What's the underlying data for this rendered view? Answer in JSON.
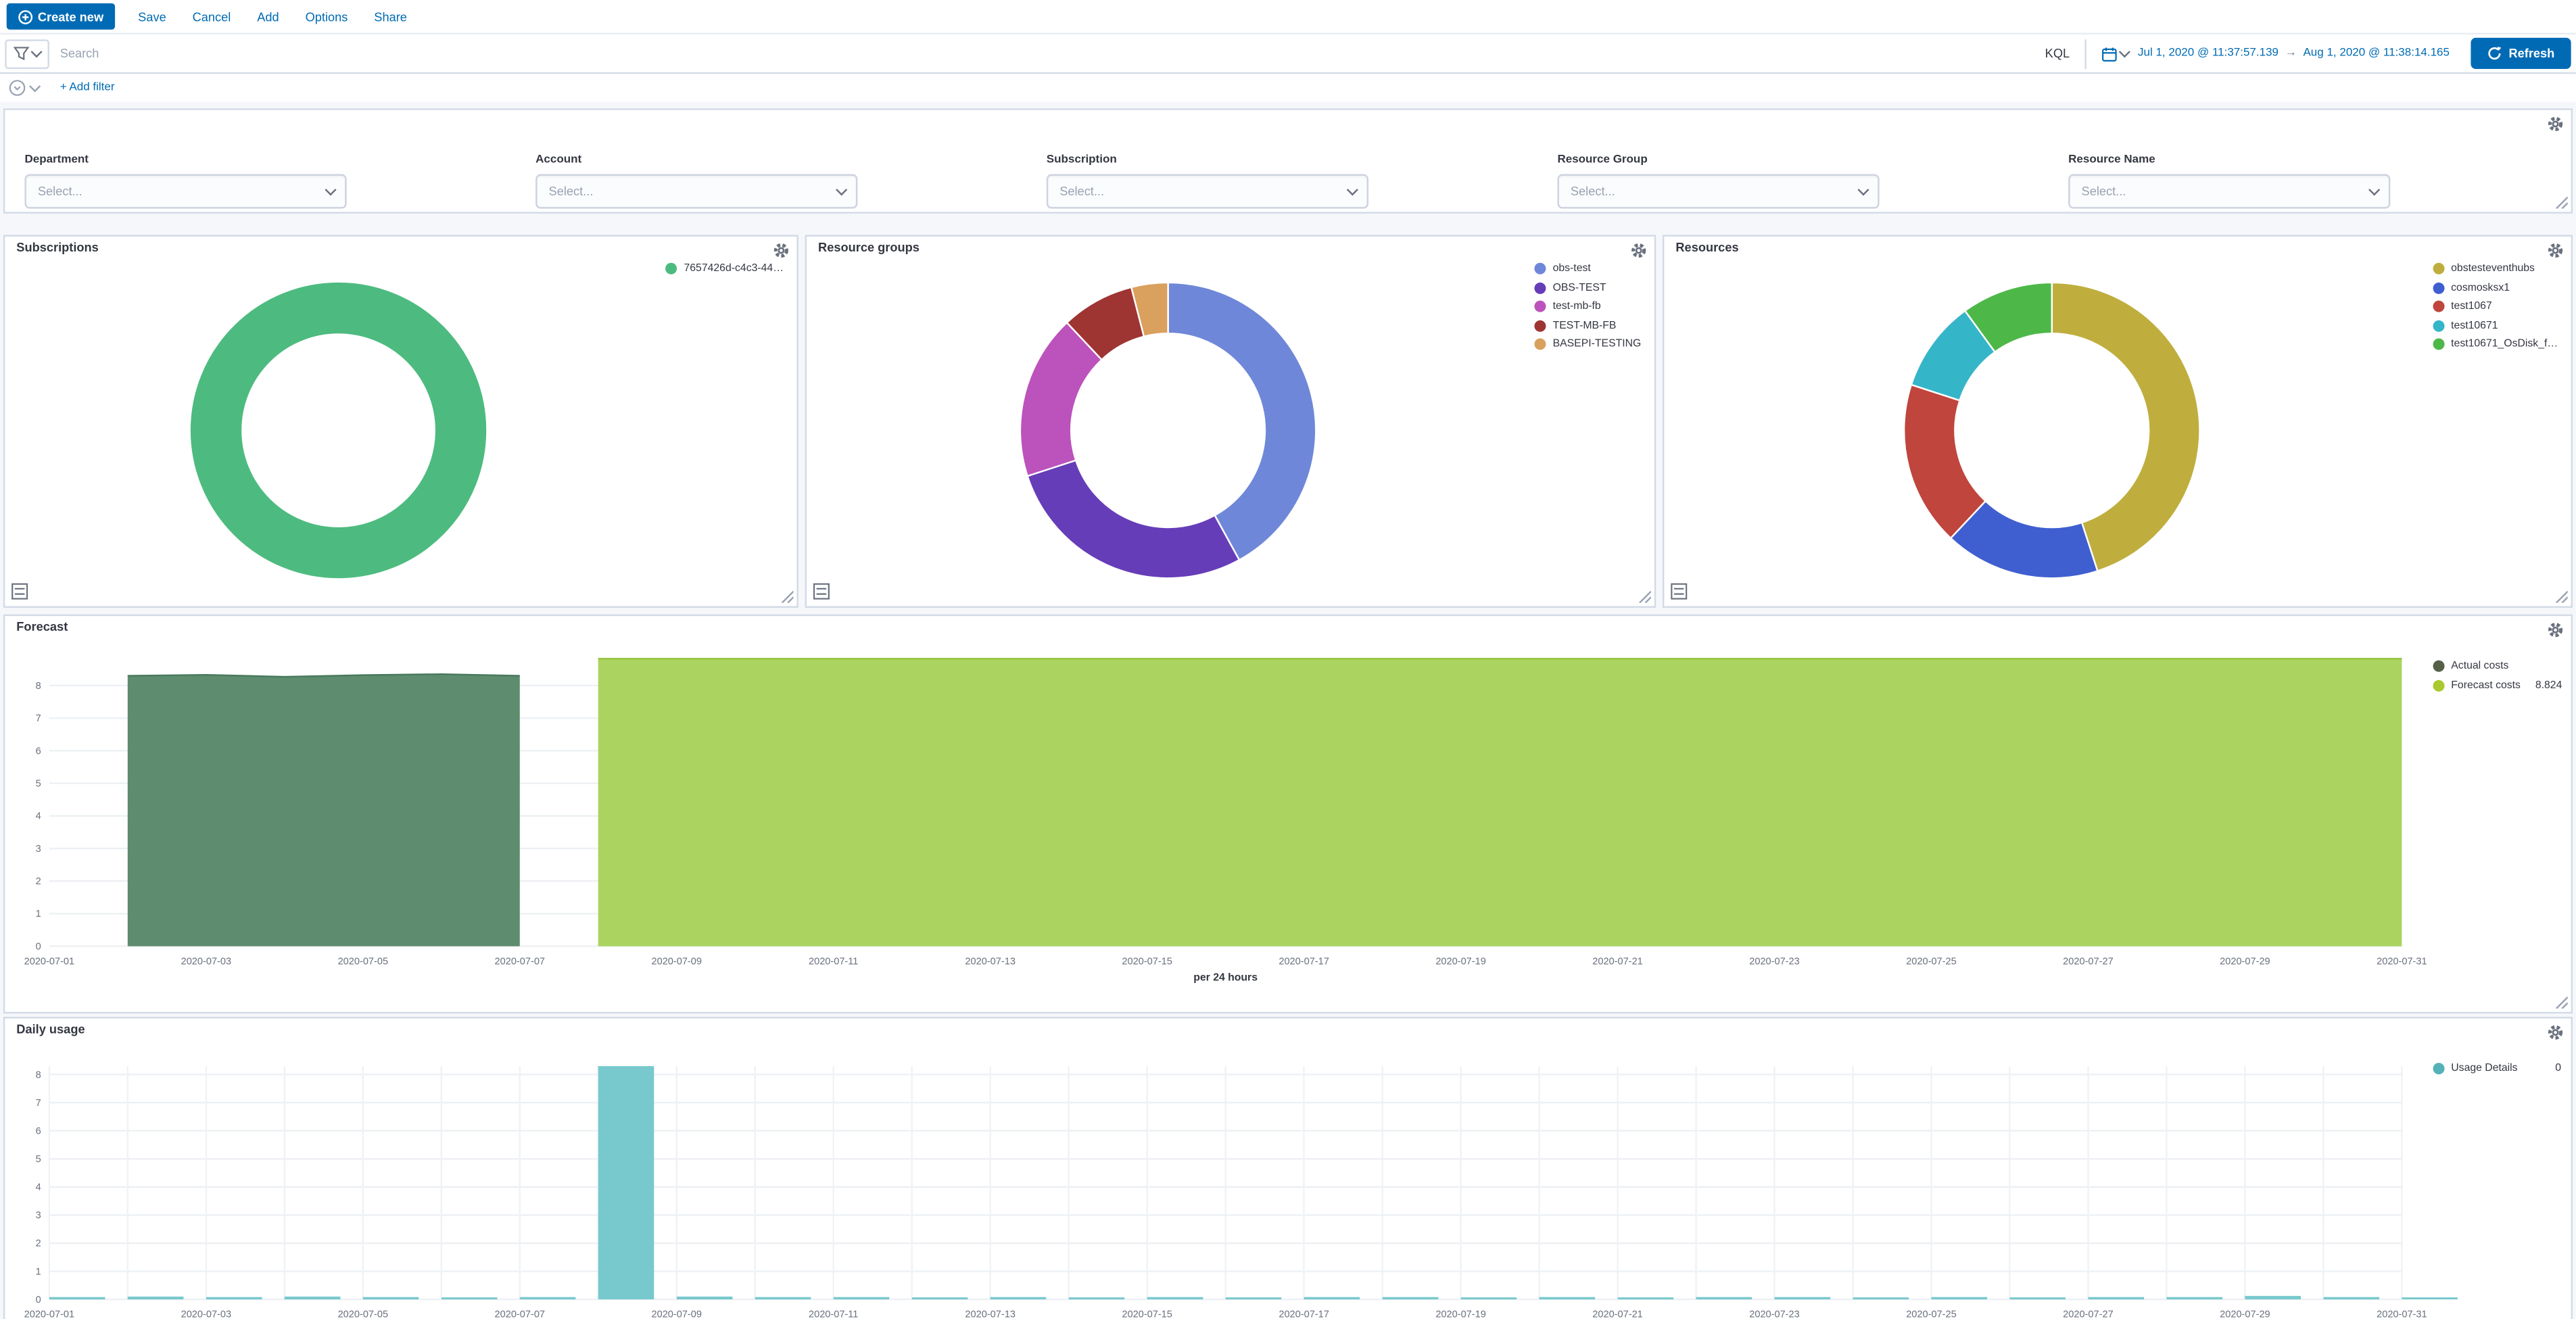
{
  "toolbar": {
    "create_new_label": "Create new",
    "items": [
      {
        "label": "Save"
      },
      {
        "label": "Cancel"
      },
      {
        "label": "Add"
      },
      {
        "label": "Options"
      },
      {
        "label": "Share"
      }
    ]
  },
  "search_bar": {
    "placeholder": "Search",
    "kql_label": "KQL",
    "date_from": "Jul 1, 2020 @ 11:37:57.139",
    "date_arrow": "→",
    "date_to": "Aug 1, 2020 @ 11:38:14.165",
    "refresh_label": "Refresh"
  },
  "filter_row": {
    "add_filter_label": "+ Add filter"
  },
  "filter_controls": {
    "fields": [
      {
        "label": "Department",
        "placeholder": "Select..."
      },
      {
        "label": "Account",
        "placeholder": "Select..."
      },
      {
        "label": "Subscription",
        "placeholder": "Select..."
      },
      {
        "label": "Resource Group",
        "placeholder": "Select..."
      },
      {
        "label": "Resource Name",
        "placeholder": "Select..."
      }
    ]
  },
  "colors": {
    "primary": "#006BB4",
    "panel_border": "#D3DAE6",
    "page_bg": "#F5F7FA",
    "text": "#343741",
    "muted": "#69707D"
  },
  "chart_data": [
    {
      "type": "pie",
      "title": "Subscriptions",
      "slices": [
        {
          "label": "7657426d-c4c3-44…",
          "value": 100,
          "color": "#4dbb7f"
        }
      ]
    },
    {
      "type": "pie",
      "title": "Resource groups",
      "slices": [
        {
          "label": "obs-test",
          "value": 42,
          "color": "#6f87d8"
        },
        {
          "label": "OBS-TEST",
          "value": 28,
          "color": "#663db8"
        },
        {
          "label": "test-mb-fb",
          "value": 18,
          "color": "#bc52bc"
        },
        {
          "label": "TEST-MB-FB",
          "value": 8,
          "color": "#9e3533"
        },
        {
          "label": "BASEPI-TESTING",
          "value": 4,
          "color": "#daa05d"
        }
      ]
    },
    {
      "type": "pie",
      "title": "Resources",
      "slices": [
        {
          "label": "obstesteventhubs",
          "value": 45,
          "color": "#bfae3e"
        },
        {
          "label": "cosmosksx1",
          "value": 17,
          "color": "#3f5fd0"
        },
        {
          "label": "test1067",
          "value": 18,
          "color": "#c0453c"
        },
        {
          "label": "test10671",
          "value": 10,
          "color": "#35b5c8"
        },
        {
          "label": "test10671_OsDisk_f…",
          "value": 10,
          "color": "#4db848"
        }
      ]
    },
    {
      "type": "area",
      "title": "Forecast",
      "xlabel": "per 24 hours",
      "x_days": 30,
      "x_tick_labels": [
        "2020-07-01",
        "2020-07-03",
        "2020-07-05",
        "2020-07-07",
        "2020-07-09",
        "2020-07-11",
        "2020-07-13",
        "2020-07-15",
        "2020-07-17",
        "2020-07-19",
        "2020-07-21",
        "2020-07-23",
        "2020-07-25",
        "2020-07-27",
        "2020-07-29",
        "2020-07-31"
      ],
      "y_ticks": [
        0,
        1,
        2,
        3,
        4,
        5,
        6,
        7,
        8
      ],
      "ymax": 8.824,
      "series": [
        {
          "name": "Actual costs",
          "color": "#5e8c6e",
          "line": "#49795c",
          "legend_dot": "#566049",
          "days": [
            1,
            2,
            3,
            4,
            5,
            6
          ],
          "values": [
            8.3,
            8.33,
            8.27,
            8.32,
            8.35,
            8.3
          ]
        },
        {
          "name": "Forecast costs",
          "color": "#aad45f",
          "line": "#93c23c",
          "legend_dot": "#aac92e",
          "value_label": "8.824",
          "days": [
            7,
            30
          ],
          "values": [
            8.824,
            8.824
          ]
        }
      ]
    },
    {
      "type": "bar",
      "title": "Daily usage",
      "x_days": 30,
      "x_tick_labels": [
        "2020-07-01",
        "2020-07-03",
        "2020-07-05",
        "2020-07-07",
        "2020-07-09",
        "2020-07-11",
        "2020-07-13",
        "2020-07-15",
        "2020-07-17",
        "2020-07-19",
        "2020-07-21",
        "2020-07-23",
        "2020-07-25",
        "2020-07-27",
        "2020-07-29",
        "2020-07-31"
      ],
      "y_ticks": [
        0,
        1,
        2,
        3,
        4,
        5,
        6,
        7,
        8
      ],
      "ymax": 8.3,
      "series": [
        {
          "name": "Usage Details",
          "color": "#77c9cd",
          "legend_dot": "#54b2b8",
          "value_label": "0",
          "values": [
            0.08,
            0.1,
            0.08,
            0.1,
            0.08,
            0.07,
            0.08,
            8.3,
            0.1,
            0.08,
            0.08,
            0.07,
            0.08,
            0.07,
            0.08,
            0.07,
            0.08,
            0.08,
            0.07,
            0.08,
            0.07,
            0.08,
            0.08,
            0.07,
            0.08,
            0.07,
            0.08,
            0.08,
            0.12,
            0.08,
            0.07
          ]
        }
      ]
    }
  ]
}
